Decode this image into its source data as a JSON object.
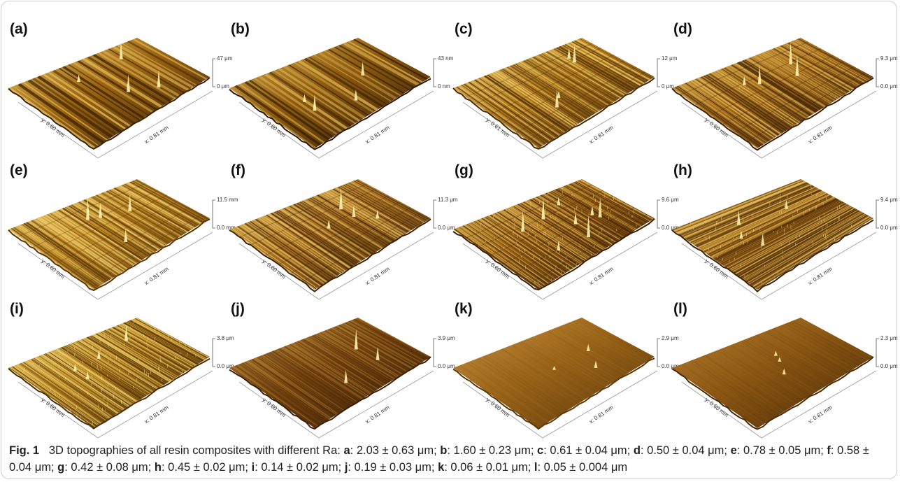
{
  "figure": {
    "caption_label": "Fig. 1",
    "caption_text": "3D topographies of all resin composites with different Ra:",
    "ra_values": [
      {
        "label": "a",
        "value": "2.03 ± 0.63 μm"
      },
      {
        "label": "b",
        "value": "1.60 ± 0.23 μm"
      },
      {
        "label": "c",
        "value": "0.61 ± 0.04 μm"
      },
      {
        "label": "d",
        "value": "0.50 ± 0.04 μm"
      },
      {
        "label": "e",
        "value": "0.78 ± 0.05 μm"
      },
      {
        "label": "f",
        "value": "0.58 ± 0.04 μm"
      },
      {
        "label": "g",
        "value": "0.42 ± 0.08 μm"
      },
      {
        "label": "h",
        "value": "0.45 ± 0.02 μm"
      },
      {
        "label": "i",
        "value": "0.14 ± 0.02 μm"
      },
      {
        "label": "j",
        "value": "0.19 ± 0.03 μm"
      },
      {
        "label": "k",
        "value": "0.06 ± 0.01 μm"
      },
      {
        "label": "l",
        "value": "0.05 ± 0.004 μm"
      }
    ]
  },
  "panels": [
    {
      "label": "(a)",
      "ztop": "47 μm",
      "zbot": "0 μm",
      "x_axis": "x: 0.81 mm",
      "y_axis": "y: 0.60 mm",
      "texture": "ridges-coarse",
      "base": "#9a6410",
      "light": "#e8c060",
      "dark": "#3a2004"
    },
    {
      "label": "(b)",
      "ztop": "43 nm",
      "zbot": "0 nm",
      "x_axis": "x: 0.81 mm",
      "y_axis": "y: 0.60 mm",
      "texture": "ridges-coarse",
      "base": "#8c5a0e",
      "light": "#dcb050",
      "dark": "#2e1804"
    },
    {
      "label": "(c)",
      "ztop": "12 μm",
      "zbot": "0 μm",
      "x_axis": "x: 0.81 mm",
      "y_axis": "y: 0.61 mm",
      "texture": "grooves-medium",
      "base": "#b07a1c",
      "light": "#f0d070",
      "dark": "#4a2a06"
    },
    {
      "label": "(d)",
      "ztop": "9.3 μm",
      "zbot": "0.0 μm",
      "x_axis": "x: 0.81 mm",
      "y_axis": "y: 0.60 mm",
      "texture": "grooves-medium",
      "base": "#a06818",
      "light": "#e0b858",
      "dark": "#3c2006"
    },
    {
      "label": "(e)",
      "ztop": "11.5 mm",
      "zbot": "0.0 mm",
      "x_axis": "x: 0.81 mm",
      "y_axis": "y: 0.60 mm",
      "texture": "grooves-medium",
      "base": "#c08a24",
      "light": "#f0d478",
      "dark": "#5a3608"
    },
    {
      "label": "(f)",
      "ztop": "11.3 μm",
      "zbot": "0.0 μm",
      "x_axis": "x: 0.81 mm",
      "y_axis": "y: 0.60 mm",
      "texture": "grooves-medium",
      "base": "#a87020",
      "light": "#e8c466",
      "dark": "#3e2206"
    },
    {
      "label": "(g)",
      "ztop": "9.6 μm",
      "zbot": "0.0 μm",
      "x_axis": "x: 0.81 mm",
      "y_axis": "y: 0.60 mm",
      "texture": "grooves-fine",
      "base": "#9c6414",
      "light": "#e6c060",
      "dark": "#3a1e04"
    },
    {
      "label": "(h)",
      "ztop": "9.4 μm",
      "zbot": "0.0 μm",
      "x_axis": "x: 0.81 mm",
      "y_axis": "y: 0.60 mm",
      "texture": "diagonal",
      "base": "#a06a1a",
      "light": "#e8c466",
      "dark": "#3e2206"
    },
    {
      "label": "(i)",
      "ztop": "3.8 μm",
      "zbot": "0.0 μm",
      "x_axis": "x: 0.81 mm",
      "y_axis": "y: 0.60 mm",
      "texture": "spiky",
      "base": "#b4821e",
      "light": "#f2d676",
      "dark": "#4e2e06"
    },
    {
      "label": "(j)",
      "ztop": "3.9 μm",
      "zbot": "0.0 μm",
      "x_axis": "x: 0.81 mm",
      "y_axis": "y: 0.60 mm",
      "texture": "flat-lines",
      "base": "#7a4810",
      "light": "#c89440",
      "dark": "#3a1e06"
    },
    {
      "label": "(k)",
      "ztop": "2.9 μm",
      "zbot": "0.0 μm",
      "x_axis": "x: 0.81 mm",
      "y_axis": "y: 0.60 mm",
      "texture": "flat",
      "base": "#9a6418",
      "light": "#c89040",
      "dark": "#5a3608"
    },
    {
      "label": "(l)",
      "ztop": "2.3 μm",
      "zbot": "0.0 μm",
      "x_axis": "x: 0.81 mm",
      "y_axis": "y: 0.60 mm",
      "texture": "flat",
      "base": "#8a5612",
      "light": "#b88030",
      "dark": "#4a2a06"
    }
  ]
}
